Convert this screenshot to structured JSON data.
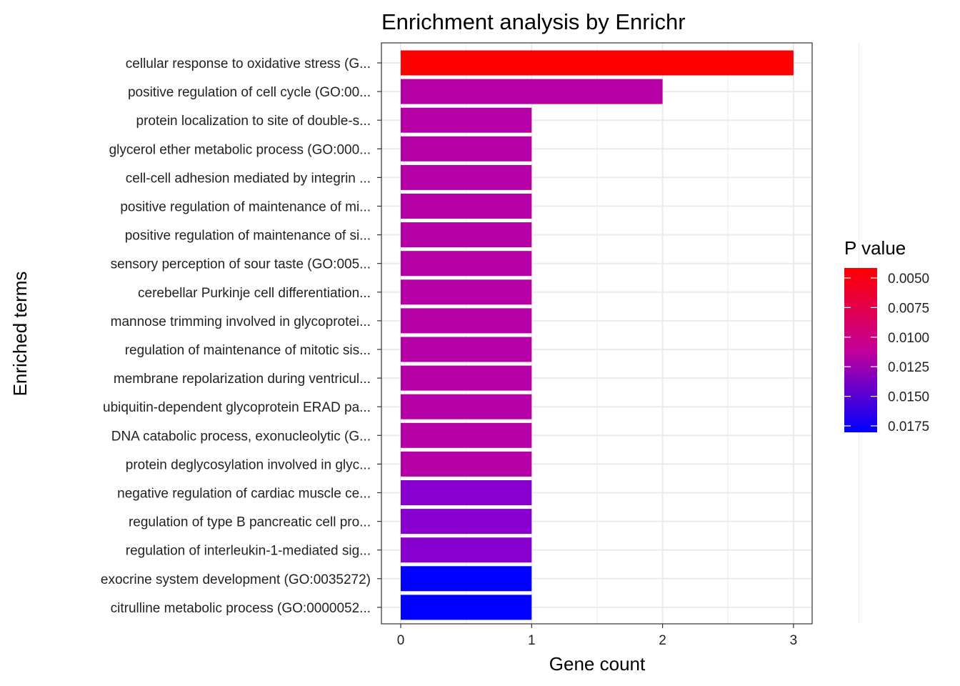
{
  "chart_data": {
    "type": "bar",
    "orientation": "horizontal",
    "title": "Enrichment analysis by Enrichr",
    "xlabel": "Gene count",
    "ylabel": "Enriched terms",
    "xlim": [
      0,
      3
    ],
    "xticks": [
      "0",
      "1",
      "2",
      "3"
    ],
    "grid": true,
    "categories": [
      "cellular response to oxidative stress (G...",
      "positive regulation of cell cycle (GO:00...",
      "protein localization to site of double-s...",
      "glycerol ether metabolic process (GO:000...",
      "cell-cell adhesion mediated by integrin ...",
      "positive regulation of maintenance of mi...",
      "positive regulation of maintenance of si...",
      "sensory perception of sour taste (GO:005...",
      "cerebellar Purkinje cell differentiation...",
      "mannose trimming involved in glycoprotei...",
      "regulation of maintenance of mitotic sis...",
      "membrane repolarization during ventricul...",
      "ubiquitin-dependent glycoprotein ERAD pa...",
      "DNA catabolic process, exonucleolytic (G...",
      "protein deglycosylation involved in glyc...",
      "negative regulation of cardiac muscle ce...",
      "regulation of type B pancreatic cell pro...",
      "regulation of interleukin-1-mediated sig...",
      "exocrine system development (GO:0035272)",
      "citrulline metabolic process (GO:0000052..."
    ],
    "values": [
      3,
      2,
      1,
      1,
      1,
      1,
      1,
      1,
      1,
      1,
      1,
      1,
      1,
      1,
      1,
      1,
      1,
      1,
      1,
      1
    ],
    "bar_colors": [
      "#ff0000",
      "#b400a4",
      "#b400a4",
      "#b400a4",
      "#b400a4",
      "#b400a4",
      "#b400a4",
      "#b400a4",
      "#b400a4",
      "#b400a4",
      "#b400a4",
      "#b400a4",
      "#b400a4",
      "#b400a4",
      "#b400a4",
      "#8800d0",
      "#8800d0",
      "#8800d0",
      "#0000ff",
      "#0000ff"
    ],
    "legend": {
      "title": "P value",
      "position": "right",
      "labels": [
        "0.0050",
        "0.0075",
        "0.0100",
        "0.0125",
        "0.0150",
        "0.0175"
      ],
      "color_low": "#ff0000",
      "color_high": "#0000ff"
    }
  }
}
